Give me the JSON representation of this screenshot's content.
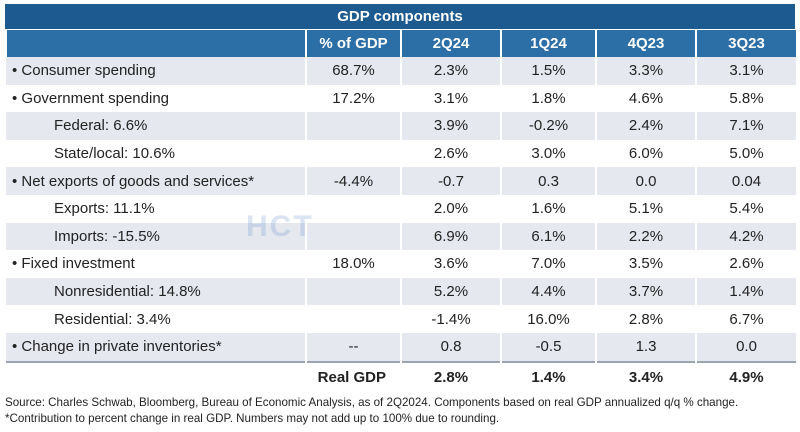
{
  "table": {
    "title": "GDP components",
    "columns": [
      "% of GDP",
      "2Q24",
      "1Q24",
      "4Q23",
      "3Q23"
    ],
    "rows": [
      {
        "label": "• Consumer spending",
        "share": "68.7%",
        "values": [
          "2.3%",
          "1.5%",
          "3.3%",
          "3.1%"
        ]
      },
      {
        "label": "• Government spending",
        "share": "17.2%",
        "values": [
          "3.1%",
          "1.8%",
          "4.6%",
          "5.8%"
        ]
      },
      {
        "label": "Federal: 6.6%",
        "values": [
          "3.9%",
          "-0.2%",
          "2.4%",
          "7.1%"
        ]
      },
      {
        "label": "State/local: 10.6%",
        "values": [
          "2.6%",
          "3.0%",
          "6.0%",
          "5.0%"
        ]
      },
      {
        "label": "• Net exports of goods and services*",
        "share": "-4.4%",
        "values": [
          "-0.7",
          "0.3",
          "0.0",
          "0.04"
        ]
      },
      {
        "label": "Exports: 11.1%",
        "values": [
          "2.0%",
          "1.6%",
          "5.1%",
          "5.4%"
        ]
      },
      {
        "label": "Imports: -15.5%",
        "values": [
          "6.9%",
          "6.1%",
          "2.2%",
          "4.2%"
        ]
      },
      {
        "label": "• Fixed investment",
        "share": "18.0%",
        "values": [
          "3.6%",
          "7.0%",
          "3.5%",
          "2.6%"
        ]
      },
      {
        "label": "Nonresidential: 14.8%",
        "values": [
          "5.2%",
          "4.4%",
          "3.7%",
          "1.4%"
        ]
      },
      {
        "label": "Residential: 3.4%",
        "values": [
          "-1.4%",
          "16.0%",
          "2.8%",
          "6.7%"
        ]
      },
      {
        "label": "• Change in private inventories*",
        "share": "--",
        "values": [
          "0.8",
          "-0.5",
          "1.3",
          "0.0"
        ]
      }
    ],
    "total": {
      "label": "Real GDP",
      "values": [
        "2.8%",
        "1.4%",
        "3.4%",
        "4.9%"
      ]
    }
  },
  "watermark": "HCT",
  "footnotes": [
    "Source: Charles Schwab, Bloomberg, Bureau of Economic Analysis, as of 2Q2024. Components based on real GDP annualized q/q % change.",
    "*Contribution to percent change in real GDP. Numbers may not add up to 100% due to rounding."
  ]
}
